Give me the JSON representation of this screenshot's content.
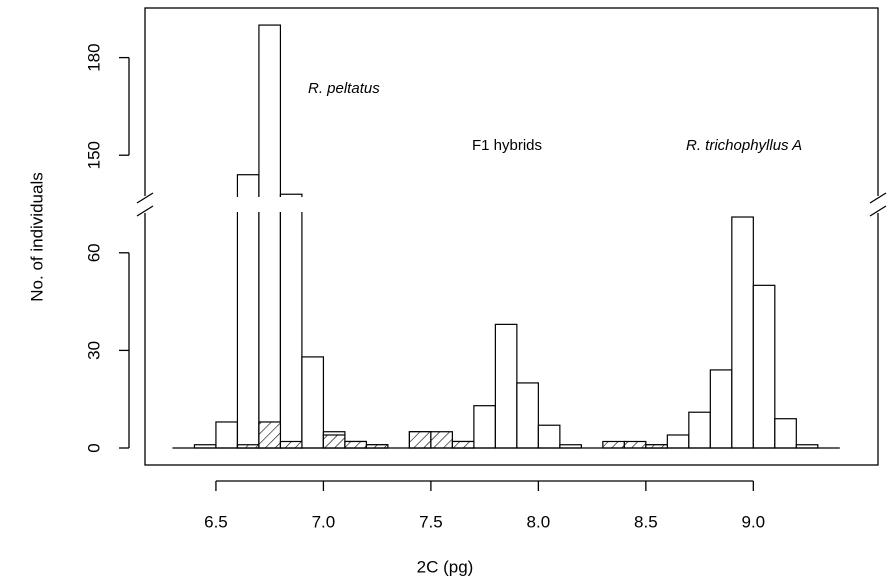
{
  "chart_data": {
    "type": "histogram",
    "xlabel": "2C (pg)",
    "ylabel": "No. of individuals",
    "bins": [
      6.4,
      6.5,
      6.6,
      6.7,
      6.8,
      6.9,
      7.0,
      7.1,
      7.2,
      7.3,
      7.4,
      7.5,
      7.6,
      7.7,
      7.8,
      7.9,
      8.0,
      8.1,
      8.2,
      8.3,
      8.4,
      8.5,
      8.6,
      8.7,
      8.8,
      8.9,
      9.0,
      9.1,
      9.2,
      9.3
    ],
    "series": [
      {
        "color": "#ffffff",
        "values": [
          1,
          8,
          144,
          190,
          138,
          28,
          5,
          2,
          1,
          0,
          5,
          0,
          2,
          13,
          38,
          20,
          7,
          1,
          0,
          0,
          0,
          1,
          4,
          11,
          24,
          71,
          50,
          9,
          1
        ]
      },
      {
        "color": "#ffffff",
        "pattern": "hatch",
        "values": [
          0,
          0,
          1,
          8,
          2,
          0,
          4,
          2,
          1,
          0,
          5,
          5,
          2,
          0,
          0,
          0,
          0,
          0,
          0,
          2,
          2,
          1,
          0,
          0,
          0,
          0,
          0,
          0,
          0
        ]
      }
    ],
    "xlim": [
      6.17,
      9.58
    ],
    "xticks": [
      {
        "value": 6.5,
        "label": "6.5"
      },
      {
        "value": 7,
        "label": "7.0"
      },
      {
        "value": 7.5,
        "label": "7.5"
      },
      {
        "value": 8,
        "label": "8.0"
      },
      {
        "value": 8.5,
        "label": "8.5"
      },
      {
        "value": 9,
        "label": "9.0"
      }
    ],
    "ylim": [
      0,
      195
    ],
    "ybreak": [
      75,
      135
    ],
    "yticks": [
      0,
      30,
      60,
      150,
      180
    ],
    "annotations": [
      {
        "text": "R. peltatus",
        "italic": true
      },
      {
        "text": "F1 hybrids",
        "italic": false
      },
      {
        "text": "R. trichophyllus A",
        "italic": true
      }
    ]
  }
}
